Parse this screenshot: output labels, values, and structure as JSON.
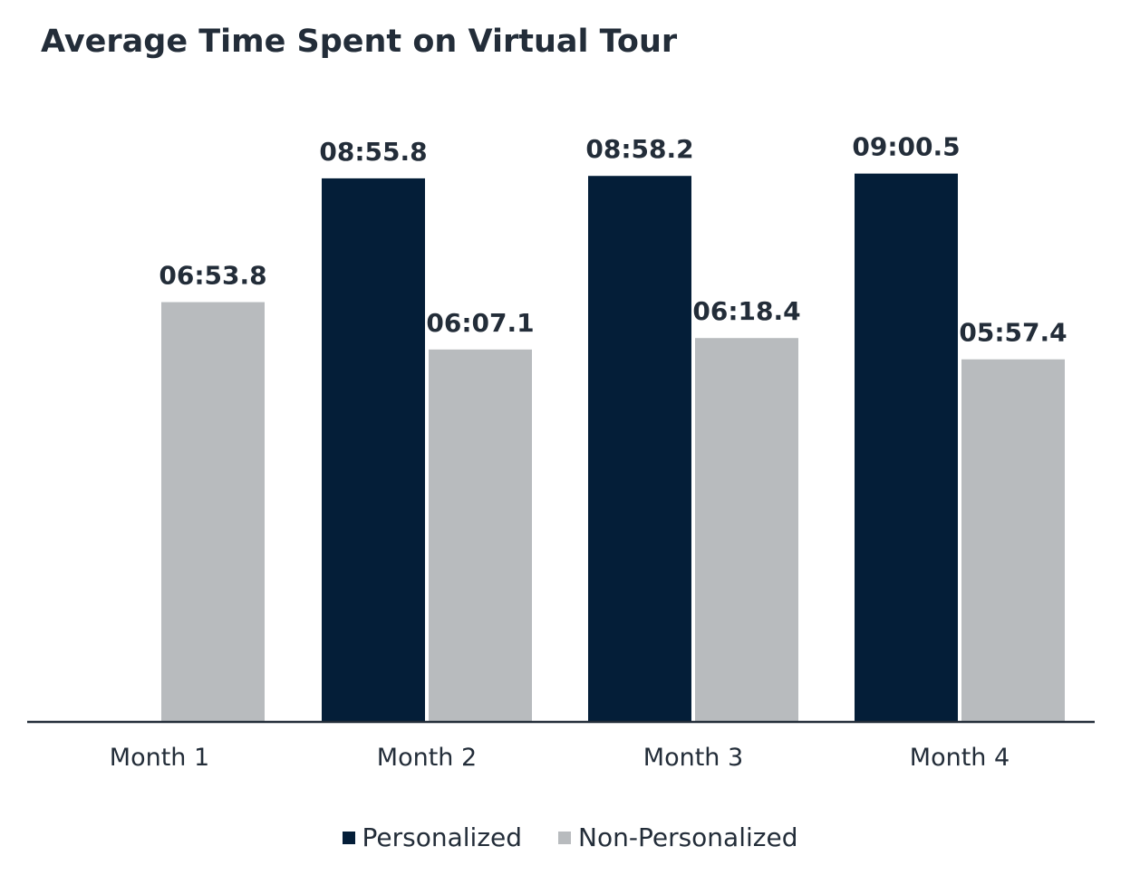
{
  "chart_data": {
    "type": "bar",
    "title": "Average Time Spent on Virtual Tour",
    "categories": [
      "Month 1",
      "Month 2",
      "Month 3",
      "Month 4"
    ],
    "value_format": "mm:ss.s",
    "series": [
      {
        "name": "Personalized",
        "color": "#041e38",
        "values": [
          null,
          535.8,
          538.2,
          540.5
        ],
        "labels": [
          "",
          "08:55.8",
          "08:58.2",
          "09:00.5"
        ]
      },
      {
        "name": "Non-Personalized",
        "color": "#b8bbbe",
        "values": [
          413.8,
          367.1,
          378.4,
          357.4
        ],
        "labels": [
          "06:53.8",
          "06:07.1",
          "06:18.4",
          "05:57.4"
        ]
      }
    ],
    "ylim": [
      0,
      600
    ],
    "grid": false,
    "y_axis_visible": false,
    "legend_position": "bottom"
  }
}
